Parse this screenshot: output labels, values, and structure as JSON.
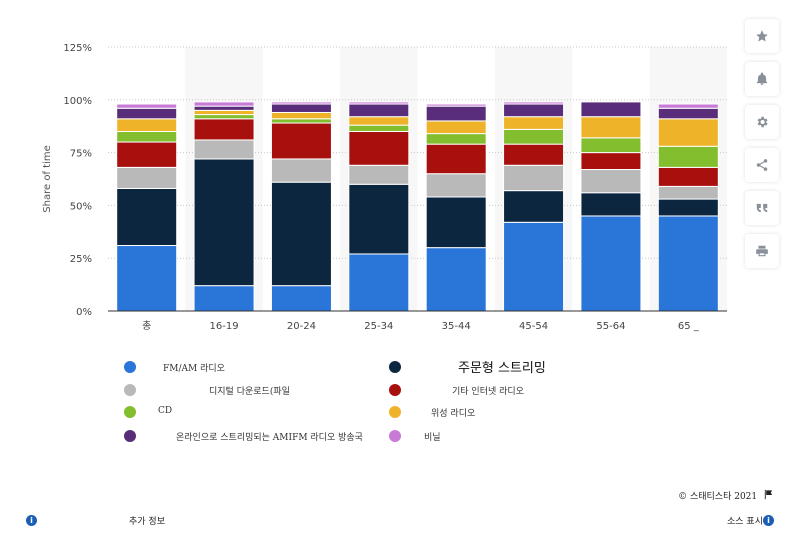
{
  "chart_data": {
    "type": "bar",
    "stacked": true,
    "categories": [
      "총",
      "16-19",
      "20-24",
      "25-34",
      "35-44",
      "45-54",
      "55-64",
      "65 _"
    ],
    "ylabel": "Share of time",
    "yticks": [
      "0%",
      "25%",
      "50%",
      "75%",
      "100%",
      "125%"
    ],
    "ylim": [
      0,
      125
    ],
    "grid": true,
    "legend_position": "bottom",
    "series": [
      {
        "name": "FM/AM 라디오",
        "color": "#2a75d8",
        "values": [
          31,
          12,
          12,
          27,
          30,
          42,
          45,
          45
        ]
      },
      {
        "name": "주문형 스트리밍",
        "color": "#0d2640",
        "values": [
          27,
          60,
          49,
          33,
          24,
          15,
          11,
          8
        ]
      },
      {
        "name": "디지털 다운로드(파일",
        "color": "#b9b9b9",
        "values": [
          10,
          9,
          11,
          9,
          11,
          12,
          11,
          6
        ]
      },
      {
        "name": "기타 인터넷 라디오",
        "color": "#a8100e",
        "values": [
          12,
          10,
          17,
          16,
          14,
          10,
          8,
          9
        ]
      },
      {
        "name": "CD",
        "color": "#83be2e",
        "values": [
          5,
          2,
          2,
          3,
          5,
          7,
          7,
          10
        ]
      },
      {
        "name": "위성 라디오",
        "color": "#efb32a",
        "values": [
          6,
          2,
          3,
          4,
          6,
          6,
          10,
          13
        ]
      },
      {
        "name": "온라인으로 스트리밍되는 AMIFM 라디오 방송국",
        "color": "#5a2d7a",
        "values": [
          5,
          2,
          4,
          6,
          7,
          6,
          7,
          5
        ]
      },
      {
        "name": "비닐",
        "color": "#c77ad6",
        "values": [
          2,
          2,
          1,
          1,
          1,
          1,
          0,
          2
        ]
      }
    ]
  },
  "footer": {
    "credit": "© 스태티스타 2021",
    "more_info": "추가 정보",
    "source": "소스 표시"
  },
  "icons": [
    "star-icon",
    "bell-icon",
    "gear-icon",
    "share-icon",
    "quote-icon",
    "print-icon",
    "flag-icon",
    "info-icon"
  ]
}
